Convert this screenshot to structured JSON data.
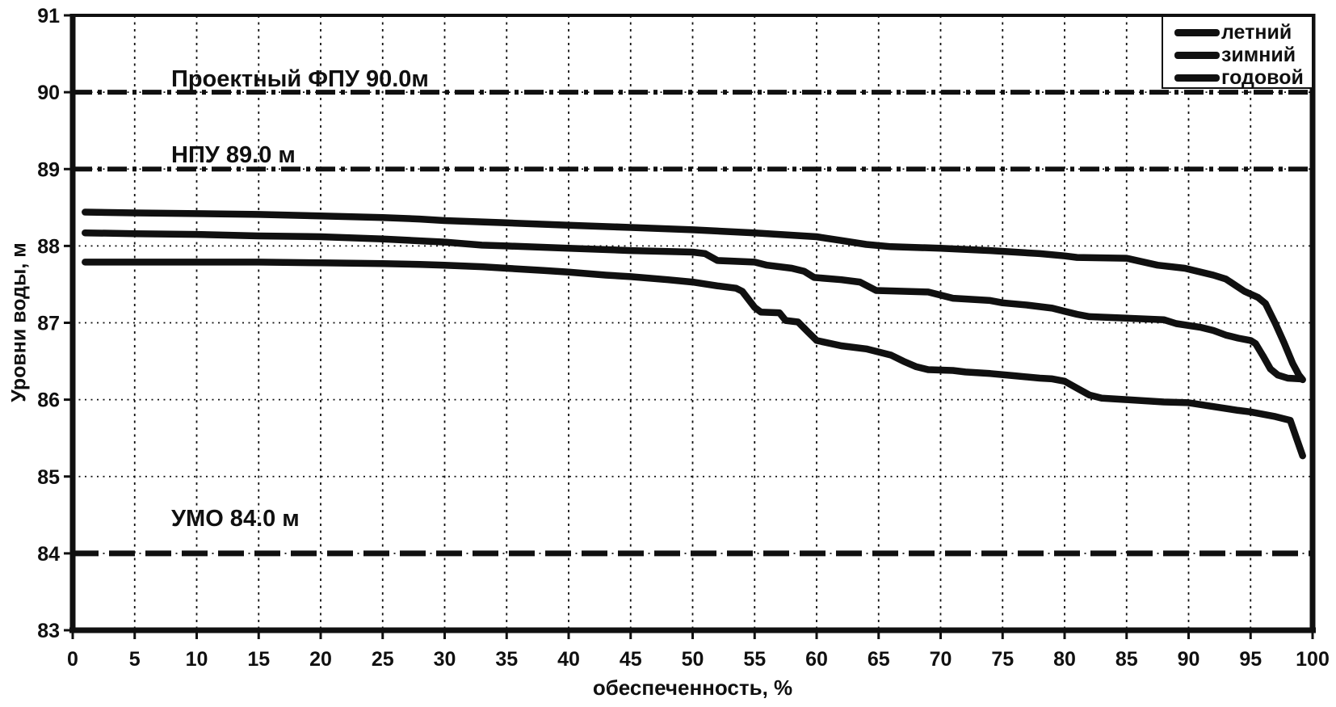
{
  "chart_data": {
    "type": "line",
    "title": "",
    "xlabel": "обеспеченность, %",
    "ylabel": "Уровни воды, м",
    "xlim": [
      0,
      100
    ],
    "ylim": [
      83,
      91
    ],
    "x_ticks": [
      0,
      5,
      10,
      15,
      20,
      25,
      30,
      35,
      40,
      45,
      50,
      55,
      60,
      65,
      70,
      75,
      80,
      85,
      90,
      95,
      100
    ],
    "y_ticks": [
      83,
      84,
      85,
      86,
      87,
      88,
      89,
      90,
      91
    ],
    "grid": "dotted, vertical every 5 %, horizontal every 1 m",
    "legend_position": "top-right inside plot",
    "colors": {
      "ink": "#101010",
      "background": "#ffffff"
    },
    "series": [
      {
        "name": "летний",
        "points": [
          [
            1,
            88.44
          ],
          [
            5,
            88.43
          ],
          [
            10,
            88.42
          ],
          [
            15,
            88.41
          ],
          [
            20,
            88.39
          ],
          [
            25,
            88.37
          ],
          [
            28,
            88.35
          ],
          [
            30,
            88.33
          ],
          [
            35,
            88.3
          ],
          [
            40,
            88.27
          ],
          [
            45,
            88.24
          ],
          [
            50,
            88.21
          ],
          [
            55,
            88.17
          ],
          [
            60,
            88.12
          ],
          [
            62,
            88.07
          ],
          [
            64,
            88.02
          ],
          [
            66,
            87.99
          ],
          [
            70,
            87.97
          ],
          [
            74,
            87.94
          ],
          [
            78,
            87.9
          ],
          [
            80,
            87.87
          ],
          [
            81,
            87.85
          ],
          [
            85,
            87.84
          ],
          [
            87.5,
            87.75
          ],
          [
            89.7,
            87.71
          ],
          [
            92,
            87.62
          ],
          [
            93,
            87.57
          ],
          [
            94.5,
            87.41
          ],
          [
            95.6,
            87.33
          ],
          [
            96.2,
            87.25
          ],
          [
            97,
            86.99
          ],
          [
            97.7,
            86.74
          ],
          [
            98.4,
            86.47
          ],
          [
            98.9,
            86.32
          ],
          [
            99.2,
            86.26
          ]
        ]
      },
      {
        "name": "зимний",
        "points": [
          [
            1,
            88.17
          ],
          [
            5,
            88.16
          ],
          [
            10,
            88.15
          ],
          [
            15,
            88.13
          ],
          [
            20,
            88.12
          ],
          [
            25,
            88.09
          ],
          [
            30,
            88.05
          ],
          [
            33,
            88.01
          ],
          [
            35,
            88.0
          ],
          [
            40,
            87.97
          ],
          [
            45,
            87.94
          ],
          [
            50,
            87.92
          ],
          [
            51,
            87.9
          ],
          [
            52,
            87.81
          ],
          [
            55,
            87.79
          ],
          [
            56,
            87.75
          ],
          [
            58,
            87.71
          ],
          [
            59,
            87.67
          ],
          [
            59.8,
            87.59
          ],
          [
            62,
            87.56
          ],
          [
            63.5,
            87.53
          ],
          [
            64.8,
            87.42
          ],
          [
            69,
            87.4
          ],
          [
            70,
            87.36
          ],
          [
            71,
            87.32
          ],
          [
            74,
            87.29
          ],
          [
            75,
            87.26
          ],
          [
            77,
            87.23
          ],
          [
            79,
            87.19
          ],
          [
            80,
            87.15
          ],
          [
            81,
            87.11
          ],
          [
            82,
            87.08
          ],
          [
            85,
            87.06
          ],
          [
            88,
            87.04
          ],
          [
            89,
            86.99
          ],
          [
            91,
            86.94
          ],
          [
            92,
            86.9
          ],
          [
            93,
            86.84
          ],
          [
            94,
            86.8
          ],
          [
            95,
            86.77
          ],
          [
            95.4,
            86.73
          ],
          [
            96,
            86.57
          ],
          [
            96.6,
            86.4
          ],
          [
            97.2,
            86.32
          ],
          [
            98,
            86.28
          ],
          [
            99,
            86.27
          ]
        ]
      },
      {
        "name": "годовой",
        "points": [
          [
            1,
            87.79
          ],
          [
            5,
            87.79
          ],
          [
            10,
            87.79
          ],
          [
            15,
            87.79
          ],
          [
            20,
            87.78
          ],
          [
            25,
            87.77
          ],
          [
            28,
            87.76
          ],
          [
            30,
            87.75
          ],
          [
            33,
            87.73
          ],
          [
            35,
            87.71
          ],
          [
            38,
            87.68
          ],
          [
            40,
            87.66
          ],
          [
            43,
            87.62
          ],
          [
            45,
            87.6
          ],
          [
            48,
            87.56
          ],
          [
            50,
            87.53
          ],
          [
            52,
            87.48
          ],
          [
            53.5,
            87.45
          ],
          [
            54,
            87.41
          ],
          [
            55,
            87.2
          ],
          [
            55.5,
            87.14
          ],
          [
            57,
            87.13
          ],
          [
            57.5,
            87.03
          ],
          [
            58.5,
            87.01
          ],
          [
            59.3,
            86.88
          ],
          [
            60,
            86.77
          ],
          [
            62,
            86.7
          ],
          [
            64,
            86.66
          ],
          [
            65,
            86.62
          ],
          [
            66,
            86.58
          ],
          [
            67,
            86.5
          ],
          [
            68,
            86.43
          ],
          [
            69,
            86.39
          ],
          [
            71,
            86.38
          ],
          [
            72,
            86.36
          ],
          [
            74,
            86.34
          ],
          [
            76,
            86.31
          ],
          [
            78,
            86.28
          ],
          [
            79,
            86.27
          ],
          [
            80,
            86.24
          ],
          [
            81,
            86.15
          ],
          [
            82,
            86.06
          ],
          [
            83,
            86.02
          ],
          [
            85,
            86.0
          ],
          [
            88,
            85.97
          ],
          [
            90,
            85.96
          ],
          [
            92,
            85.91
          ],
          [
            94,
            85.86
          ],
          [
            95,
            85.84
          ],
          [
            96,
            85.81
          ],
          [
            97,
            85.78
          ],
          [
            98.2,
            85.73
          ],
          [
            98.7,
            85.5
          ],
          [
            99.2,
            85.27
          ]
        ]
      }
    ],
    "reference_lines": [
      {
        "label": "Проектный ФПУ 90.0м",
        "value": 90.0,
        "style": "dash-dot"
      },
      {
        "label": "НПУ 89.0 м",
        "value": 89.0,
        "style": "dash-dot"
      },
      {
        "label": "УМО 84.0 м",
        "value": 84.0,
        "style": "long-dash"
      }
    ]
  }
}
